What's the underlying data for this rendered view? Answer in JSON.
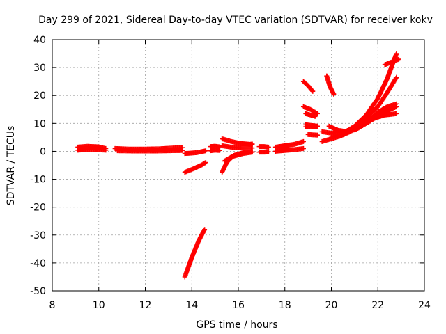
{
  "chart_data": {
    "type": "scatter",
    "title": "Day 299 of 2021, Sidereal Day-to-day VTEC variation (SDTVAR) for receiver kokv",
    "xlabel": "GPS time / hours",
    "ylabel": "SDTVAR / TECUs",
    "xlim": [
      8,
      24
    ],
    "ylim": [
      -50,
      40
    ],
    "x_ticks": [
      "8",
      "10",
      "12",
      "14",
      "16",
      "18",
      "20",
      "22",
      "24"
    ],
    "y_ticks": [
      "40",
      "30",
      "20",
      "10",
      "0",
      "-10",
      "-20",
      "-30",
      "-40",
      "-50"
    ],
    "grid": true,
    "marker": "plus",
    "color": "#ff0000",
    "series": [
      {
        "segments": [
          {
            "x": [
              9.1,
              9.5,
              10.0,
              10.3
            ],
            "y": [
              1.5,
              1.8,
              1.6,
              1.0
            ]
          },
          {
            "x": [
              9.1,
              9.6,
              10.3
            ],
            "y": [
              0.4,
              0.7,
              0.4
            ]
          },
          {
            "x": [
              10.7,
              11.3,
              12.0,
              12.6,
              13.2,
              13.6
            ],
            "y": [
              1.0,
              0.8,
              0.8,
              0.9,
              1.2,
              1.3
            ]
          },
          {
            "x": [
              10.8,
              11.6,
              12.4,
              13.6
            ],
            "y": [
              0.2,
              0.1,
              0.1,
              0.3
            ]
          },
          {
            "x": [
              13.7,
              14.0,
              14.4,
              14.6
            ],
            "y": [
              -7.5,
              -6.5,
              -5.0,
              -4.0
            ]
          },
          {
            "x": [
              13.7,
              14.2,
              14.6
            ],
            "y": [
              -0.8,
              -0.5,
              0.2
            ]
          },
          {
            "x": [
              13.7,
              14.0,
              14.3,
              14.55
            ],
            "y": [
              -45,
              -38,
              -32,
              -28
            ]
          },
          {
            "x": [
              14.8,
              15.0,
              15.2
            ],
            "y": [
              1.7,
              1.8,
              1.6
            ]
          },
          {
            "x": [
              14.8,
              15.0,
              15.2
            ],
            "y": [
              0.2,
              0.4,
              0.3
            ]
          },
          {
            "x": [
              15.3,
              15.7,
              16.1,
              16.5,
              16.6
            ],
            "y": [
              4.5,
              3.5,
              2.8,
              2.5,
              2.6
            ]
          },
          {
            "x": [
              15.3,
              15.7,
              16.1,
              16.6
            ],
            "y": [
              2.0,
              1.5,
              1.2,
              1.2
            ]
          },
          {
            "x": [
              15.3,
              15.5,
              15.8,
              16.2,
              16.6
            ],
            "y": [
              -7.5,
              -4.0,
              -1.5,
              -0.5,
              -0.2
            ]
          },
          {
            "x": [
              15.4,
              15.7,
              16.2,
              16.6
            ],
            "y": [
              -3.5,
              -2.0,
              -0.8,
              -0.3
            ]
          },
          {
            "x": [
              16.9,
              17.1,
              17.3
            ],
            "y": [
              1.7,
              1.7,
              1.5
            ]
          },
          {
            "x": [
              16.9,
              17.1,
              17.3
            ],
            "y": [
              -0.3,
              -0.3,
              -0.2
            ]
          },
          {
            "x": [
              17.6,
              18.0,
              18.4,
              18.8
            ],
            "y": [
              1.5,
              2.0,
              2.5,
              3.5
            ]
          },
          {
            "x": [
              17.6,
              18.0,
              18.4,
              18.8
            ],
            "y": [
              0.0,
              0.3,
              0.6,
              1.0
            ]
          },
          {
            "x": [
              18.8,
              19.0,
              19.2
            ],
            "y": [
              25.0,
              23.5,
              21.5
            ]
          },
          {
            "x": [
              18.8,
              19.1,
              19.4
            ],
            "y": [
              16.0,
              15.0,
              13.5
            ]
          },
          {
            "x": [
              18.9,
              19.1,
              19.3
            ],
            "y": [
              13.5,
              13.0,
              12.5
            ]
          },
          {
            "x": [
              18.9,
              19.2,
              19.4
            ],
            "y": [
              9.5,
              9.2,
              9.0
            ]
          },
          {
            "x": [
              18.9,
              19.2,
              19.4
            ],
            "y": [
              8.8,
              8.8,
              9.0
            ]
          },
          {
            "x": [
              19.0,
              19.4
            ],
            "y": [
              6.0,
              5.8
            ]
          },
          {
            "x": [
              19.8,
              19.95,
              20.1
            ],
            "y": [
              27.0,
              23.0,
              20.5
            ]
          },
          {
            "x": [
              19.6,
              20.0,
              20.4,
              20.8,
              21.2,
              21.6,
              22.0,
              22.4,
              22.8
            ],
            "y": [
              7.0,
              6.5,
              6.8,
              7.5,
              9.0,
              11.0,
              14.0,
              16.0,
              17.0
            ]
          },
          {
            "x": [
              19.6,
              20.0,
              20.4,
              20.8,
              21.2,
              21.6,
              22.0,
              22.4,
              22.8
            ],
            "y": [
              3.5,
              4.5,
              5.5,
              7.0,
              9.0,
              11.0,
              12.5,
              14.5,
              16.0
            ]
          },
          {
            "x": [
              19.9,
              20.3,
              20.7,
              21.1,
              21.5,
              21.9,
              22.3,
              22.8
            ],
            "y": [
              9.0,
              7.5,
              7.0,
              8.0,
              10.0,
              12.0,
              13.0,
              13.5
            ]
          },
          {
            "x": [
              20.0,
              20.5,
              21.0,
              21.5,
              22.0,
              22.4,
              22.8
            ],
            "y": [
              5.0,
              6.0,
              8.5,
              12.0,
              16.0,
              21.0,
              26.5
            ]
          },
          {
            "x": [
              20.5,
              21.0,
              21.5,
              22.0,
              22.4,
              22.8
            ],
            "y": [
              6.5,
              9.0,
              13.0,
              19.0,
              26.0,
              35.0
            ]
          },
          {
            "x": [
              22.3,
              22.6,
              22.9
            ],
            "y": [
              31.0,
              32.0,
              33.0
            ]
          }
        ]
      }
    ]
  }
}
